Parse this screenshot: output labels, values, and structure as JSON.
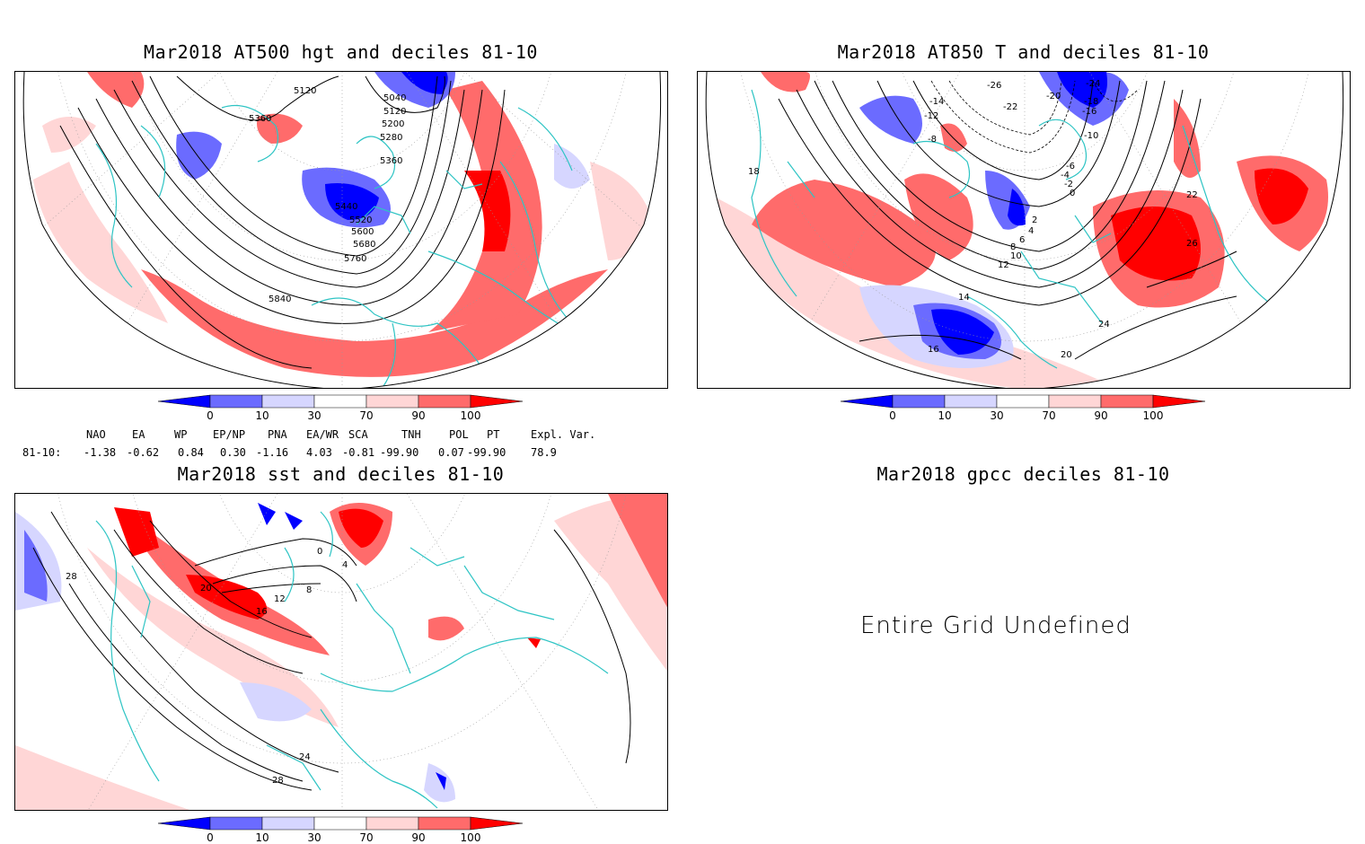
{
  "panels": {
    "z500": {
      "title": "Mar2018 AT500 hgt and deciles 81-10",
      "contour_labels": [
        "5040",
        "5120",
        "5120",
        "5200",
        "5280",
        "5360",
        "5360",
        "5440",
        "5520",
        "5600",
        "5680",
        "5760",
        "5840"
      ]
    },
    "t850": {
      "title": "Mar2018 AT850 T and deciles 81-10",
      "contour_labels": [
        "-26",
        "-24",
        "-22",
        "-20",
        "-18",
        "-16",
        "-14",
        "-12",
        "-10",
        "-8",
        "-6",
        "-4",
        "-2",
        "0",
        "2",
        "4",
        "6",
        "8",
        "10",
        "12",
        "14",
        "16",
        "18",
        "20",
        "22",
        "24",
        "26"
      ]
    },
    "sst": {
      "title": "Mar2018 sst and deciles 81-10",
      "contour_labels": [
        "0",
        "4",
        "8",
        "12",
        "16",
        "20",
        "24",
        "28"
      ]
    },
    "gpcc": {
      "title": "Mar2018 gpcc deciles 81-10",
      "message": "Entire Grid Undefined"
    }
  },
  "colorbar": {
    "ticks": [
      "0",
      "10",
      "30",
      "70",
      "90",
      "100"
    ],
    "colors": [
      "#0000ff",
      "#6b6bff",
      "#d6d6ff",
      "#ffffff",
      "#ffd6d6",
      "#ff6b6b",
      "#ff0000"
    ]
  },
  "indices": {
    "headers": [
      "NAO",
      "EA",
      "WP",
      "EP/NP",
      "PNA",
      "EA/WR",
      "SCA",
      "TNH",
      "POL",
      "PT",
      "Expl. Var."
    ],
    "row_label": "81-10:",
    "values": [
      "-1.38",
      "-0.62",
      "0.84",
      "0.30",
      "-1.16",
      "4.03",
      "-0.81",
      "-99.90",
      "0.07",
      "-99.90",
      "78.9"
    ]
  },
  "colors": {
    "coast": "#2ec4c4",
    "grid": "#999999",
    "contour": "#000000"
  }
}
